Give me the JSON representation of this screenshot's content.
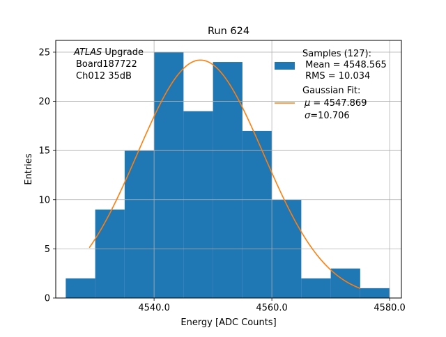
{
  "chart_data": {
    "type": "bar",
    "title": "Run 624",
    "xlabel": "Energy [ADC Counts]",
    "ylabel": "Entries",
    "xlim": [
      4523.3,
      4582.0
    ],
    "ylim": [
      0,
      26.2
    ],
    "x_ticks": [
      4540,
      4560,
      4580
    ],
    "x_tick_labels": [
      "4540.0",
      "4560.0",
      "4580.0"
    ],
    "y_ticks": [
      0,
      5,
      10,
      15,
      20,
      25
    ],
    "y_tick_labels": [
      "0",
      "5",
      "10",
      "15",
      "20",
      "25"
    ],
    "grid": true,
    "annotation": {
      "line1_italic": "ATLAS",
      "line1_rest": " Upgrade",
      "line2": "Board187722",
      "line3": "Ch012 35dB"
    },
    "histogram": {
      "name": "Samples (127):",
      "color": "#1f77b4",
      "bin_edges": [
        4525,
        4530,
        4535,
        4540,
        4545,
        4550,
        4555,
        4560,
        4565,
        4570,
        4575,
        4580
      ],
      "counts": [
        2,
        9,
        15,
        25,
        19,
        24,
        17,
        10,
        2,
        3,
        1
      ]
    },
    "fit": {
      "name": "Gaussian Fit:",
      "color": "#ff7f0e",
      "mu": 4547.869,
      "sigma": 10.706,
      "amplitude": 24.2,
      "x_range": [
        4529,
        4575
      ]
    },
    "legend": {
      "placement": "top-right",
      "hist_lines": [
        "Samples (127):",
        " Mean = 4548.565",
        " RMS = 10.034"
      ],
      "fit_lines": [
        "Gaussian Fit:",
        "= 4547.869",
        "=10.706"
      ],
      "fit_symbols": [
        "μ",
        "σ"
      ]
    }
  }
}
